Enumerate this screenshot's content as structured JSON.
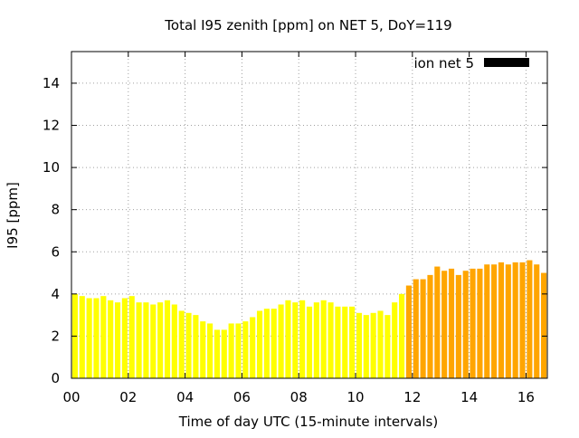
{
  "chart_data": {
    "type": "bar",
    "title": "Total I95 zenith [ppm] on NET 5, DoY=119",
    "xlabel": "Time of day UTC (15-minute intervals)",
    "ylabel": "I95 [ppm]",
    "xlim": [
      0,
      16.75
    ],
    "ylim": [
      0,
      15.5
    ],
    "interval_hours": 0.25,
    "x_ticks": [
      0,
      2,
      4,
      6,
      8,
      10,
      12,
      14,
      16
    ],
    "x_tick_labels": [
      "00",
      "02",
      "04",
      "06",
      "08",
      "10",
      "12",
      "14",
      "16"
    ],
    "y_ticks": [
      0,
      2,
      4,
      6,
      8,
      10,
      12,
      14
    ],
    "y_tick_labels": [
      "0",
      "2",
      "4",
      "6",
      "8",
      "10",
      "12",
      "14"
    ],
    "grid": true,
    "legend": {
      "position": "top-right",
      "entries": [
        {
          "label": "ion net 5",
          "color": "#000000"
        }
      ]
    },
    "colors": {
      "early": "#ffff00",
      "late": "#ffa500",
      "grid": "#a0a0a0",
      "axis": "#000000"
    },
    "series": [
      {
        "values": [
          4.0,
          3.9,
          3.8,
          3.8,
          3.9,
          3.7,
          3.6,
          3.8,
          3.9,
          3.6,
          3.6,
          3.5,
          3.6,
          3.7,
          3.5,
          3.2,
          3.1,
          3.0,
          2.7,
          2.6,
          2.3,
          2.3,
          2.6,
          2.6,
          2.7,
          2.9,
          3.2,
          3.3,
          3.3,
          3.5,
          3.7,
          3.6,
          3.7,
          3.4,
          3.6,
          3.7,
          3.6,
          3.4,
          3.4,
          3.4,
          3.1,
          3.0,
          3.1,
          3.2,
          3.0,
          3.6,
          4.0,
          4.4,
          4.7,
          4.7,
          4.9,
          5.3,
          5.1,
          5.2,
          4.9,
          5.1,
          5.2,
          5.2,
          5.4,
          5.4,
          5.5,
          5.4,
          5.5,
          5.5,
          5.6,
          5.4,
          5.0,
          4.7
        ],
        "colors": [
          "#ffff00",
          "#ffff00",
          "#ffff00",
          "#ffff00",
          "#ffff00",
          "#ffff00",
          "#ffff00",
          "#ffff00",
          "#ffff00",
          "#ffff00",
          "#ffff00",
          "#ffff00",
          "#ffff00",
          "#ffff00",
          "#ffff00",
          "#ffff00",
          "#ffff00",
          "#ffff00",
          "#ffff00",
          "#ffff00",
          "#ffff00",
          "#ffff00",
          "#ffff00",
          "#ffff00",
          "#ffff00",
          "#ffff00",
          "#ffff00",
          "#ffff00",
          "#ffff00",
          "#ffff00",
          "#ffff00",
          "#ffff00",
          "#ffff00",
          "#ffff00",
          "#ffff00",
          "#ffff00",
          "#ffff00",
          "#ffff00",
          "#ffff00",
          "#ffff00",
          "#ffff00",
          "#ffff00",
          "#ffff00",
          "#ffff00",
          "#ffff00",
          "#ffff00",
          "#ffff00",
          "#ffa500",
          "#ffa500",
          "#ffa500",
          "#ffa500",
          "#ffa500",
          "#ffa500",
          "#ffa500",
          "#ffa500",
          "#ffa500",
          "#ffa500",
          "#ffa500",
          "#ffa500",
          "#ffa500",
          "#ffa500",
          "#ffa500",
          "#ffa500",
          "#ffa500",
          "#ffa500",
          "#ffa500",
          "#ffa500",
          "#ffa500"
        ]
      }
    ]
  }
}
